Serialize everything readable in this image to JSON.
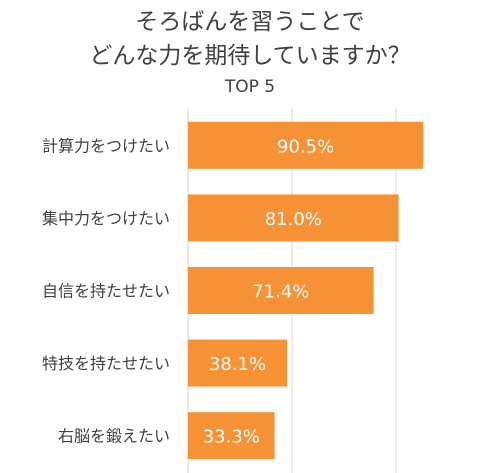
{
  "chart_data": {
    "type": "bar",
    "orientation": "horizontal",
    "title_lines": [
      "そろばんを習うことで",
      "どんな力を期待していますか？"
    ],
    "subtitle": "TOP 5",
    "categories": [
      "計算力をつけたい",
      "集中力をつけたい",
      "自信を持たせたい",
      "特技を持たせたい",
      "右脳を鍛えたい"
    ],
    "values": [
      90.5,
      81.0,
      71.4,
      38.1,
      33.3
    ],
    "data_labels": [
      "90.5%",
      "81.0%",
      "71.4%",
      "38.1%",
      "33.3%"
    ],
    "xlim": [
      0,
      120
    ],
    "grid": true,
    "legend": "none",
    "bar_color": "#f79135",
    "label_color": "#ffffff",
    "grid_color": "#d9d9d9"
  }
}
